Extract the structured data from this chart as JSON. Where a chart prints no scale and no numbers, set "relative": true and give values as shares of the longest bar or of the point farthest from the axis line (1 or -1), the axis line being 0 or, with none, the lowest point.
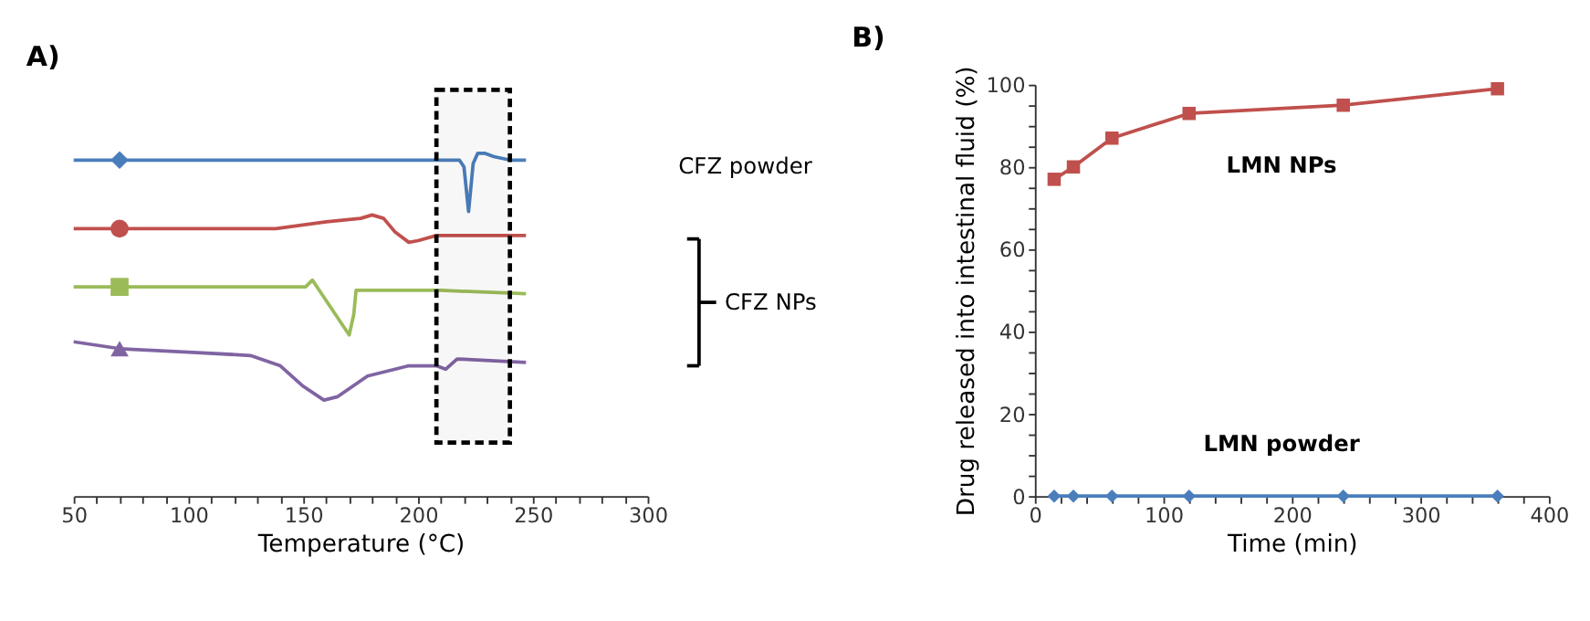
{
  "chart_data": [
    {
      "type": "line",
      "title": "A)",
      "xlabel": "Temperature (°C)",
      "relative": true,
      "xlim": [
        50,
        300
      ],
      "xticks": [
        50,
        {
          "value": 60,
          "label": null
        },
        {
          "value": 70,
          "label": null
        },
        {
          "value": 80,
          "label": null
        },
        {
          "value": 90,
          "label": null
        },
        100,
        {
          "value": 110,
          "label": null
        },
        {
          "value": 120,
          "label": null
        },
        {
          "value": 130,
          "label": null
        },
        {
          "value": 140,
          "label": null
        },
        150,
        {
          "value": 160,
          "label": null
        },
        {
          "value": 170,
          "label": null
        },
        {
          "value": 180,
          "label": null
        },
        {
          "value": 190,
          "label": null
        },
        200,
        {
          "value": 210,
          "label": null
        },
        {
          "value": 220,
          "label": null
        },
        {
          "value": 230,
          "label": null
        },
        {
          "value": 240,
          "label": null
        },
        250,
        {
          "value": 260,
          "label": null
        },
        {
          "value": 270,
          "label": null
        },
        {
          "value": 280,
          "label": null
        },
        {
          "value": 290,
          "label": null
        },
        300
      ],
      "series": [
        {
          "type": "scatter",
          "color": "#4a7ebb",
          "marker": "diamond",
          "x": [
            70
          ],
          "values": [
            0.98
          ]
        },
        {
          "type": "scatter",
          "color": "#c0504d",
          "marker": "circle",
          "x": [
            70
          ],
          "values": [
            0.78
          ]
        },
        {
          "type": "scatter",
          "color": "#9bbb59",
          "marker": "square",
          "x": [
            70
          ],
          "values": [
            0.61
          ]
        },
        {
          "type": "scatter",
          "color": "#8064a2",
          "marker": "triangle",
          "x": [
            70
          ],
          "values": [
            0.43
          ]
        },
        {
          "name": "CFZ powder",
          "color": "#4a7ebb",
          "x": [
            50,
            70,
            150,
            200,
            218,
            220,
            222,
            223,
            224,
            226,
            229,
            233,
            240,
            247
          ],
          "values": [
            0.98,
            0.98,
            0.98,
            0.98,
            0.98,
            0.96,
            0.83,
            0.9,
            0.97,
            1.0,
            1.0,
            0.99,
            0.98,
            0.98
          ]
        },
        {
          "color": "#c0504d",
          "x": [
            50,
            70,
            100,
            138,
            160,
            175,
            180,
            185,
            190,
            196,
            200,
            208,
            230,
            247
          ],
          "values": [
            0.78,
            0.78,
            0.78,
            0.78,
            0.8,
            0.81,
            0.82,
            0.81,
            0.77,
            0.74,
            0.745,
            0.76,
            0.76,
            0.76
          ]
        },
        {
          "color": "#9bbb59",
          "x": [
            50,
            70,
            140,
            151,
            154,
            157,
            163,
            170,
            172,
            173,
            185,
            210,
            247
          ],
          "values": [
            0.61,
            0.61,
            0.61,
            0.61,
            0.63,
            0.6,
            0.54,
            0.47,
            0.53,
            0.6,
            0.6,
            0.6,
            0.59
          ]
        },
        {
          "color": "#8064a2",
          "x": [
            50,
            70,
            100,
            127,
            140,
            150,
            159,
            165,
            178,
            196,
            208,
            212,
            217,
            247
          ],
          "values": [
            0.45,
            0.43,
            0.42,
            0.41,
            0.38,
            0.32,
            0.28,
            0.29,
            0.35,
            0.38,
            0.38,
            0.37,
            0.4,
            0.39
          ]
        }
      ],
      "bands": [
        {
          "axis": "x",
          "from": 208,
          "to": 240,
          "color": "#000000"
        }
      ],
      "annotations": [
        "CFZ NPs"
      ]
    },
    {
      "type": "line",
      "title": "B)",
      "xlabel": "Time (min)",
      "ylabel": "Drug released into intestinal fluid (%)",
      "xlim": [
        0,
        400
      ],
      "ylim": [
        0,
        100
      ],
      "xticks": [
        0,
        {
          "value": 20,
          "label": null
        },
        {
          "value": 40,
          "label": null
        },
        {
          "value": 60,
          "label": null
        },
        {
          "value": 80,
          "label": null
        },
        100,
        {
          "value": 120,
          "label": null
        },
        {
          "value": 140,
          "label": null
        },
        {
          "value": 160,
          "label": null
        },
        {
          "value": 180,
          "label": null
        },
        200,
        {
          "value": 220,
          "label": null
        },
        {
          "value": 240,
          "label": null
        },
        {
          "value": 260,
          "label": null
        },
        {
          "value": 280,
          "label": null
        },
        300,
        {
          "value": 320,
          "label": null
        },
        {
          "value": 340,
          "label": null
        },
        {
          "value": 360,
          "label": null
        },
        {
          "value": 380,
          "label": null
        },
        400
      ],
      "yticks": [
        0,
        {
          "value": 5,
          "label": null
        },
        {
          "value": 10,
          "label": null
        },
        {
          "value": 15,
          "label": null
        },
        20,
        {
          "value": 25,
          "label": null
        },
        {
          "value": 30,
          "label": null
        },
        {
          "value": 35,
          "label": null
        },
        40,
        {
          "value": 45,
          "label": null
        },
        {
          "value": 50,
          "label": null
        },
        {
          "value": 55,
          "label": null
        },
        60,
        {
          "value": 65,
          "label": null
        },
        {
          "value": 70,
          "label": null
        },
        {
          "value": 75,
          "label": null
        },
        80,
        {
          "value": 85,
          "label": null
        },
        {
          "value": 90,
          "label": null
        },
        {
          "value": 95,
          "label": null
        },
        100
      ],
      "series": [
        {
          "name": "LMN NPs",
          "color": "#c0504d",
          "marker": "square",
          "x": [
            15,
            30,
            60,
            120,
            240,
            360
          ],
          "values": [
            77,
            80,
            87,
            93,
            95,
            99
          ]
        },
        {
          "name": "LMN powder",
          "color": "#4a7ebb",
          "marker": "diamond",
          "x": [
            15,
            30,
            60,
            120,
            240,
            360
          ],
          "values": [
            0,
            0,
            0,
            0,
            0,
            0
          ]
        }
      ]
    }
  ]
}
